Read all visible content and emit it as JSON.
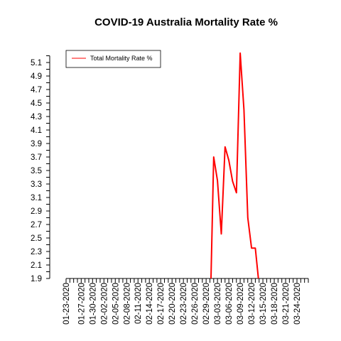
{
  "chart_data": {
    "type": "line",
    "title": "COVID-19 Australia Mortality Rate %",
    "xlabel": "",
    "ylabel": "",
    "ylim": [
      1.9,
      5.2
    ],
    "y_ticks_labeled": [
      "1.9",
      "2.1",
      "2.3",
      "2.5",
      "2.7",
      "2.9",
      "3.1",
      "3.3",
      "3.5",
      "3.7",
      "3.9",
      "4.1",
      "4.3",
      "4.5",
      "4.7",
      "4.9",
      "5.1"
    ],
    "x_start": "01-23-2020",
    "x_end": "03-27-2020",
    "x_tick_labels": [
      "01-23-2020",
      "01-27-2020",
      "01-30-2020",
      "02-02-2020",
      "02-05-2020",
      "02-08-2020",
      "02-11-2020",
      "02-14-2020",
      "02-17-2020",
      "02-20-2020",
      "02-23-2020",
      "02-26-2020",
      "02-29-2020",
      "03-03-2020",
      "03-06-2020",
      "03-09-2020",
      "03-12-2020",
      "03-15-2020",
      "03-18-2020",
      "03-21-2020",
      "03-24-2020"
    ],
    "legend_position": "top-left",
    "grid": false,
    "series": [
      {
        "name": "Total Mortality Rate %",
        "color": "#ff0000",
        "x": [
          "03-01-2020",
          "03-02-2020",
          "03-03-2020",
          "03-04-2020",
          "03-05-2020",
          "03-06-2020",
          "03-07-2020",
          "03-08-2020",
          "03-09-2020",
          "03-10-2020",
          "03-11-2020",
          "03-12-2020",
          "03-13-2020"
        ],
        "values": [
          1.2,
          3.7,
          3.35,
          2.56,
          3.85,
          3.65,
          3.34,
          3.17,
          5.24,
          4.4,
          2.8,
          2.35,
          2.35
        ]
      }
    ],
    "tail": {
      "x": "03-14-2020",
      "value": 1.8
    }
  }
}
